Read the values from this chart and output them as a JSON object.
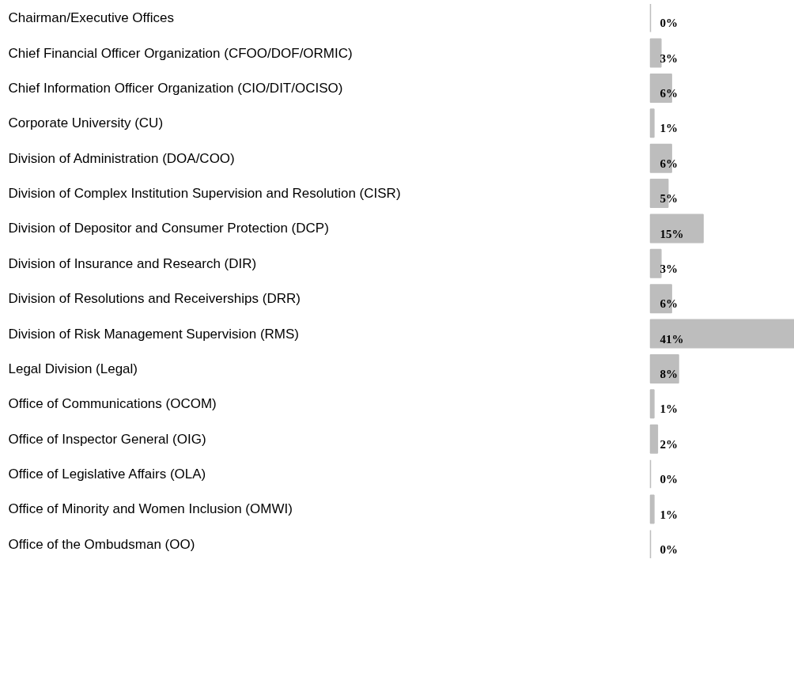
{
  "chart_data": {
    "type": "bar",
    "orientation": "horizontal",
    "categories": [
      "Chairman/Executive Offices",
      "Chief Financial Officer Organization (CFOO/DOF/ORMIC)",
      "Chief Information Officer Organization (CIO/DIT/OCISO)",
      "Corporate University (CU)",
      "Division of Administration (DOA/COO)",
      "Division of Complex Institution Supervision and Resolution (CISR)",
      "Division of Depositor and Consumer Protection (DCP)",
      "Division of Insurance and Research (DIR)",
      "Division of Resolutions and Receiverships (DRR)",
      "Division of Risk Management Supervision (RMS)",
      "Legal Division (Legal)",
      "Office of Communications (OCOM)",
      "Office of Inspector General (OIG)",
      "Office of Legislative Affairs (OLA)",
      "Office of Minority and Women Inclusion (OMWI)",
      "Office of the Ombudsman (OO)"
    ],
    "values": [
      0,
      3,
      6,
      1,
      6,
      5,
      15,
      3,
      6,
      41,
      8,
      1,
      2,
      0,
      1,
      0
    ],
    "value_labels": [
      "0%",
      "3%",
      "6%",
      "1%",
      "6%",
      "5%",
      "15%",
      "3%",
      "6%",
      "41%",
      "8%",
      "1%",
      "2%",
      "0%",
      "1%",
      "0%"
    ],
    "color": "#bdbdbd"
  }
}
